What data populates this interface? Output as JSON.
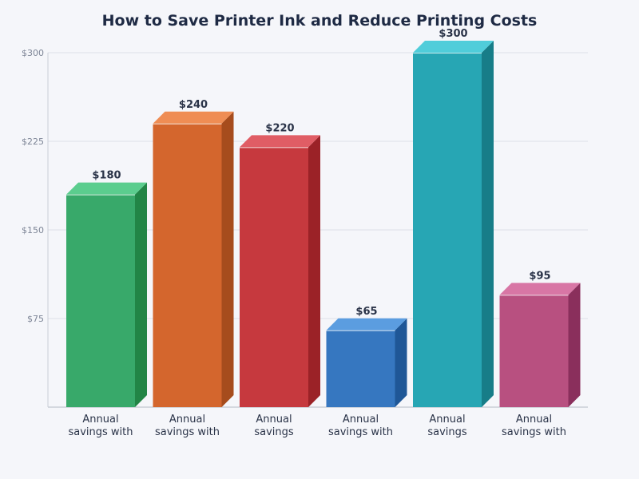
{
  "chart_data": {
    "type": "bar",
    "title": "How to Save Printer Ink and Reduce Printing Costs",
    "xlabel": "",
    "ylabel": "",
    "ylim": [
      0,
      300
    ],
    "yticks": [
      "$75",
      "$150",
      "$225",
      "$300"
    ],
    "ytick_values": [
      75,
      150,
      225,
      300
    ],
    "grid": true,
    "categories": [
      [
        "Annual",
        "savings with"
      ],
      [
        "Annual",
        "savings with"
      ],
      [
        "Annual",
        "savings"
      ],
      [
        "Annual",
        "savings with"
      ],
      [
        "Annual",
        "savings"
      ],
      [
        "Annual",
        "savings with"
      ]
    ],
    "values": [
      180,
      240,
      220,
      65,
      300,
      95
    ],
    "value_labels": [
      "$180",
      "$240",
      "$220",
      "$65",
      "$300",
      "$95"
    ],
    "colors": [
      {
        "front": "#38a96a",
        "top": "#5bcd8e",
        "side": "#228546"
      },
      {
        "front": "#d4662d",
        "top": "#ef8d54",
        "side": "#a64c1d"
      },
      {
        "front": "#c6393e",
        "top": "#e05d65",
        "side": "#9b2227"
      },
      {
        "front": "#3677c0",
        "top": "#5b9de0",
        "side": "#1f5797"
      },
      {
        "front": "#27a6b4",
        "top": "#50cdda",
        "side": "#177d88"
      },
      {
        "front": "#b85080",
        "top": "#d876a5",
        "side": "#8a2f5c"
      }
    ]
  }
}
